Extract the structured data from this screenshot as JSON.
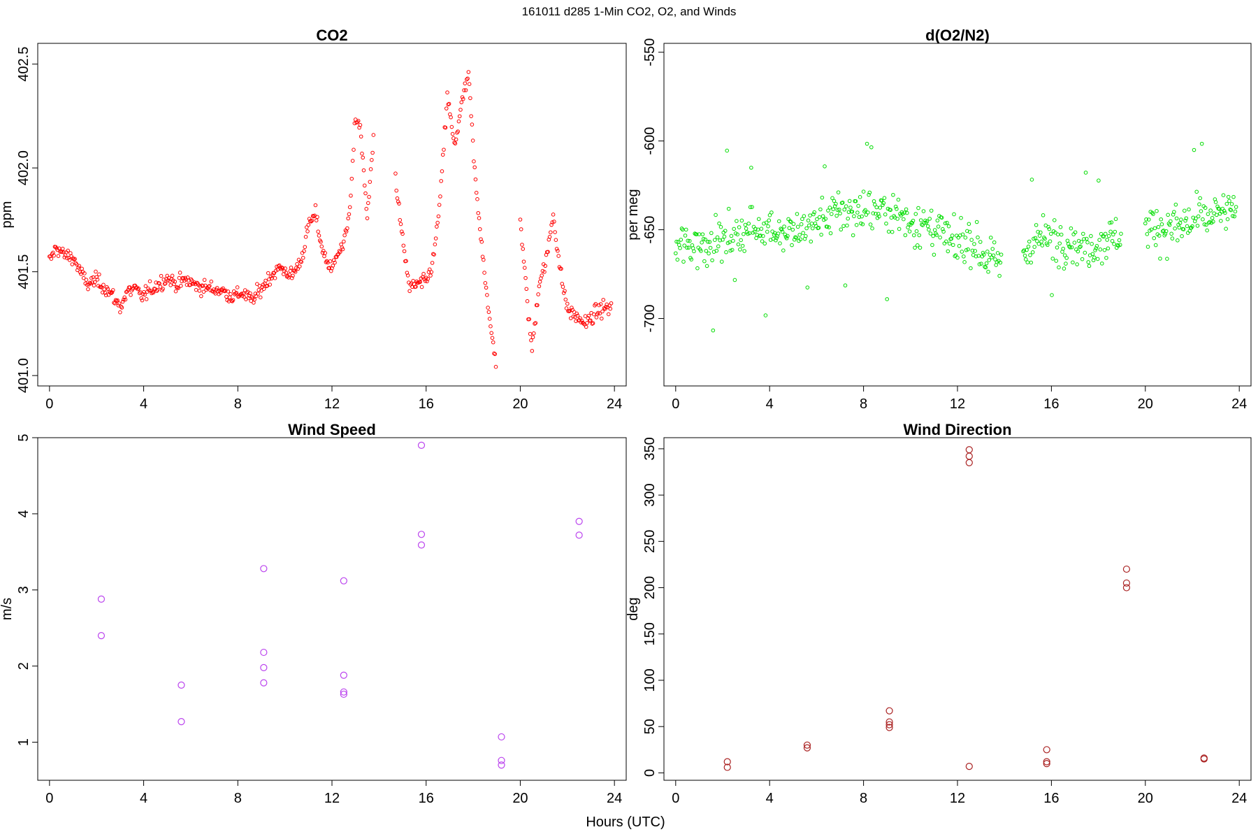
{
  "figure": {
    "suptitle": "161011   d285   1-Min CO2, O2, and Winds",
    "xlabel": "Hours (UTC)"
  },
  "chart_data": [
    {
      "id": "co2",
      "type": "scatter",
      "title": "CO2",
      "ylabel": "ppm",
      "color": "#ff0000",
      "marker": "open-circle-small",
      "xlim": [
        -0.5,
        24.5
      ],
      "ylim": [
        400.95,
        402.6
      ],
      "xticks": [
        0,
        4,
        8,
        12,
        16,
        20,
        24
      ],
      "yticks": [
        401.0,
        401.5,
        402.0,
        402.5
      ],
      "ytick_labels": [
        "401.0",
        "401.5",
        "402.0",
        "402.5"
      ],
      "trend": [
        [
          0.0,
          401.55
        ],
        [
          0.3,
          401.62
        ],
        [
          0.6,
          401.58
        ],
        [
          1.0,
          401.57
        ],
        [
          1.3,
          401.5
        ],
        [
          1.6,
          401.44
        ],
        [
          2.0,
          401.46
        ],
        [
          2.4,
          401.42
        ],
        [
          2.7,
          401.38
        ],
        [
          3.0,
          401.33
        ],
        [
          3.3,
          401.4
        ],
        [
          3.6,
          401.42
        ],
        [
          3.9,
          401.38
        ],
        [
          5.0,
          401.47
        ],
        [
          5.4,
          401.44
        ],
        [
          5.8,
          401.46
        ],
        [
          6.3,
          401.43
        ],
        [
          6.8,
          401.42
        ],
        [
          7.3,
          401.41
        ],
        [
          7.8,
          401.38
        ],
        [
          8.2,
          401.4
        ],
        [
          8.6,
          401.36
        ],
        [
          9.0,
          401.42
        ],
        [
          9.4,
          401.48
        ],
        [
          9.8,
          401.52
        ],
        [
          10.3,
          401.48
        ],
        [
          10.7,
          401.56
        ],
        [
          11.0,
          401.72
        ],
        [
          11.3,
          401.78
        ],
        [
          11.6,
          401.6
        ],
        [
          12.0,
          401.5
        ],
        [
          12.2,
          401.6
        ],
        [
          12.5,
          401.62
        ],
        [
          12.8,
          401.85
        ],
        [
          13.0,
          402.25
        ],
        [
          13.2,
          402.2
        ],
        [
          13.5,
          401.75
        ],
        [
          13.8,
          402.22
        ],
        [
          14.2,
          null
        ],
        [
          14.7,
          401.95
        ],
        [
          15.0,
          401.65
        ],
        [
          15.3,
          401.42
        ],
        [
          15.6,
          401.44
        ],
        [
          16.0,
          401.45
        ],
        [
          16.3,
          401.55
        ],
        [
          16.6,
          401.85
        ],
        [
          16.9,
          402.35
        ],
        [
          17.2,
          402.1
        ],
        [
          17.5,
          402.3
        ],
        [
          17.8,
          402.45
        ],
        [
          18.1,
          401.92
        ],
        [
          18.4,
          401.6
        ],
        [
          18.7,
          401.25
        ],
        [
          19.0,
          401.05
        ],
        [
          19.3,
          null
        ],
        [
          20.0,
          401.75
        ],
        [
          20.3,
          401.35
        ],
        [
          20.5,
          401.12
        ],
        [
          20.8,
          401.45
        ],
        [
          21.1,
          401.55
        ],
        [
          21.4,
          401.78
        ],
        [
          21.7,
          401.5
        ],
        [
          22.0,
          401.32
        ],
        [
          22.4,
          401.28
        ],
        [
          22.8,
          401.25
        ],
        [
          23.2,
          401.3
        ],
        [
          23.6,
          401.33
        ],
        [
          23.9,
          401.32
        ]
      ]
    },
    {
      "id": "o2",
      "type": "scatter",
      "title": "d(O2/N2)",
      "ylabel": "per meg",
      "color": "#00dd00",
      "marker": "open-circle-small",
      "xlim": [
        -0.5,
        24.5
      ],
      "ylim": [
        -738,
        -545
      ],
      "xticks": [
        0,
        4,
        8,
        12,
        16,
        20,
        24
      ],
      "yticks": [
        -700,
        -650,
        -600,
        -550
      ],
      "ytick_labels": [
        "-700",
        "-650",
        "-600",
        "-550"
      ],
      "trend": [
        [
          0.0,
          -660
        ],
        [
          1.0,
          -658
        ],
        [
          2.0,
          -655
        ],
        [
          3.0,
          -650
        ],
        [
          3.9,
          -648
        ],
        [
          4.8,
          -652
        ],
        [
          5.5,
          -650
        ],
        [
          6.2,
          -645
        ],
        [
          7.0,
          -640
        ],
        [
          8.0,
          -640
        ],
        [
          9.0,
          -638
        ],
        [
          10.0,
          -645
        ],
        [
          11.0,
          -650
        ],
        [
          12.0,
          -660
        ],
        [
          12.6,
          -655
        ],
        [
          13.2,
          -665
        ],
        [
          13.9,
          -672
        ],
        [
          14.5,
          null
        ],
        [
          14.8,
          -662
        ],
        [
          15.5,
          -655
        ],
        [
          16.5,
          -655
        ],
        [
          17.5,
          -660
        ],
        [
          18.3,
          -655
        ],
        [
          19.0,
          -652
        ],
        [
          19.5,
          null
        ],
        [
          20.0,
          -648
        ],
        [
          21.0,
          -650
        ],
        [
          22.0,
          -645
        ],
        [
          23.0,
          -642
        ],
        [
          23.9,
          -640
        ]
      ]
    },
    {
      "id": "wind-speed",
      "type": "scatter",
      "title": "Wind Speed",
      "ylabel": "m/s",
      "color": "#bb44ee",
      "marker": "open-circle-large",
      "xlim": [
        -0.5,
        24.5
      ],
      "ylim": [
        0.5,
        5.0
      ],
      "xticks": [
        0,
        4,
        8,
        12,
        16,
        20,
        24
      ],
      "yticks": [
        1,
        2,
        3,
        4,
        5
      ],
      "ytick_labels": [
        "1",
        "2",
        "3",
        "4",
        "5"
      ],
      "points": [
        [
          2.2,
          2.88
        ],
        [
          2.2,
          2.4
        ],
        [
          5.6,
          1.75
        ],
        [
          5.6,
          1.27
        ],
        [
          9.1,
          3.28
        ],
        [
          9.1,
          2.18
        ],
        [
          9.1,
          1.98
        ],
        [
          9.1,
          1.78
        ],
        [
          12.5,
          3.12
        ],
        [
          12.5,
          1.88
        ],
        [
          12.5,
          1.66
        ],
        [
          12.5,
          1.63
        ],
        [
          15.8,
          4.9
        ],
        [
          15.8,
          3.73
        ],
        [
          15.8,
          3.59
        ],
        [
          19.2,
          1.07
        ],
        [
          19.2,
          0.76
        ],
        [
          19.2,
          0.7
        ],
        [
          22.5,
          3.9
        ],
        [
          22.5,
          3.72
        ]
      ]
    },
    {
      "id": "wind-direction",
      "type": "scatter",
      "title": "Wind Direction",
      "ylabel": "deg",
      "color": "#aa2222",
      "marker": "open-circle-large",
      "xlim": [
        -0.5,
        24.5
      ],
      "ylim": [
        -8,
        362
      ],
      "xticks": [
        0,
        4,
        8,
        12,
        16,
        20,
        24
      ],
      "yticks": [
        0,
        50,
        100,
        150,
        200,
        250,
        300,
        350
      ],
      "ytick_labels": [
        "0",
        "50",
        "100",
        "150",
        "200",
        "250",
        "300",
        "350"
      ],
      "points": [
        [
          2.2,
          12
        ],
        [
          2.2,
          6
        ],
        [
          5.6,
          30
        ],
        [
          5.6,
          27
        ],
        [
          9.1,
          67
        ],
        [
          9.1,
          55
        ],
        [
          9.1,
          52
        ],
        [
          9.1,
          49
        ],
        [
          12.5,
          349
        ],
        [
          12.5,
          342
        ],
        [
          12.5,
          335
        ],
        [
          12.5,
          7
        ],
        [
          15.8,
          25
        ],
        [
          15.8,
          12
        ],
        [
          15.8,
          10
        ],
        [
          19.2,
          220
        ],
        [
          19.2,
          205
        ],
        [
          19.2,
          200
        ],
        [
          22.5,
          16
        ],
        [
          22.5,
          15
        ]
      ]
    }
  ]
}
